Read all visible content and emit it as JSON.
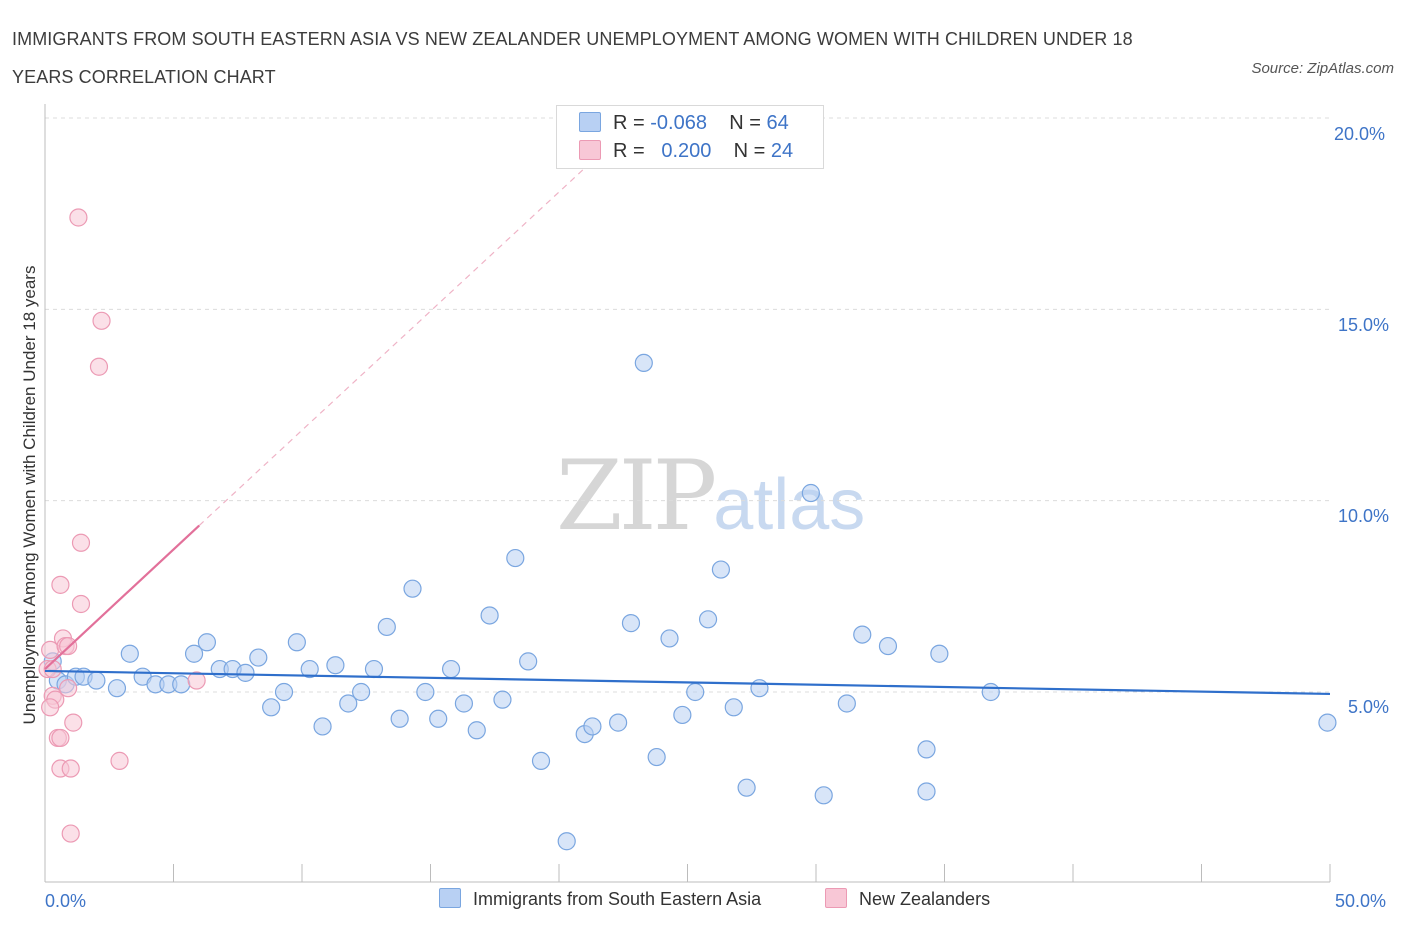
{
  "title": "IMMIGRANTS FROM SOUTH EASTERN ASIA VS NEW ZEALANDER UNEMPLOYMENT AMONG WOMEN WITH CHILDREN UNDER 18 YEARS CORRELATION CHART",
  "source": "Source: ZipAtlas.com",
  "watermark": {
    "zip": "ZIP",
    "atlas": "atlas"
  },
  "legend": {
    "r_label": "R =",
    "n_label": "N =",
    "rows": [
      {
        "r": "-0.068",
        "n": "64"
      },
      {
        "r": "0.200",
        "n": "24"
      }
    ]
  },
  "colors": {
    "blue_fill": "#b8d0f3",
    "blue_stroke": "#7aa6e0",
    "blue_line": "#2f6fcb",
    "pink_fill": "#f8c7d6",
    "pink_stroke": "#ec9ab4",
    "pink_line": "#e2709a",
    "axis_text": "#3e74c7",
    "grid": "#dcdcdc"
  },
  "chart_data": {
    "type": "scatter",
    "title": "IMMIGRANTS FROM SOUTH EASTERN ASIA VS NEW ZEALANDER UNEMPLOYMENT AMONG WOMEN WITH CHILDREN UNDER 18 YEARS CORRELATION CHART",
    "xlabel": "",
    "ylabel": "Unemployment Among Women with Children Under 18 years",
    "xlim": [
      0,
      50
    ],
    "ylim": [
      0,
      20.5
    ],
    "x_tick_labels": [
      "0.0%",
      "50.0%"
    ],
    "y_ticks": [
      5,
      10,
      15,
      20
    ],
    "y_tick_labels": [
      "5.0%",
      "10.0%",
      "15.0%",
      "20.0%"
    ],
    "grid": true,
    "legend_position": "top-center",
    "series": [
      {
        "name": "Immigrants from South Eastern Asia",
        "color": "blue",
        "r": -0.068,
        "n": 64,
        "trend": {
          "x": [
            0,
            50
          ],
          "y": [
            5.55,
            4.95
          ],
          "style": "solid"
        },
        "points": [
          [
            0.3,
            5.8
          ],
          [
            0.5,
            5.3
          ],
          [
            0.8,
            5.2
          ],
          [
            1.2,
            5.4
          ],
          [
            1.5,
            5.4
          ],
          [
            2.0,
            5.3
          ],
          [
            2.8,
            5.1
          ],
          [
            3.3,
            6.0
          ],
          [
            3.8,
            5.4
          ],
          [
            4.3,
            5.2
          ],
          [
            4.8,
            5.2
          ],
          [
            5.3,
            5.2
          ],
          [
            5.8,
            6.0
          ],
          [
            6.3,
            6.3
          ],
          [
            6.8,
            5.6
          ],
          [
            7.3,
            5.6
          ],
          [
            7.8,
            5.5
          ],
          [
            8.3,
            5.9
          ],
          [
            8.8,
            4.6
          ],
          [
            9.3,
            5.0
          ],
          [
            9.8,
            6.3
          ],
          [
            10.3,
            5.6
          ],
          [
            10.8,
            4.1
          ],
          [
            11.3,
            5.7
          ],
          [
            11.8,
            4.7
          ],
          [
            12.3,
            5.0
          ],
          [
            12.8,
            5.6
          ],
          [
            13.3,
            6.7
          ],
          [
            13.8,
            4.3
          ],
          [
            14.3,
            7.7
          ],
          [
            14.8,
            5.0
          ],
          [
            15.3,
            4.3
          ],
          [
            15.8,
            5.6
          ],
          [
            16.3,
            4.7
          ],
          [
            16.8,
            4.0
          ],
          [
            17.3,
            7.0
          ],
          [
            17.8,
            4.8
          ],
          [
            18.3,
            8.5
          ],
          [
            18.8,
            5.8
          ],
          [
            19.3,
            3.2
          ],
          [
            20.3,
            1.1
          ],
          [
            21.0,
            3.9
          ],
          [
            21.3,
            4.1
          ],
          [
            22.3,
            4.2
          ],
          [
            22.8,
            6.8
          ],
          [
            23.3,
            13.6
          ],
          [
            23.8,
            3.3
          ],
          [
            24.3,
            6.4
          ],
          [
            24.8,
            4.4
          ],
          [
            25.3,
            5.0
          ],
          [
            25.8,
            6.9
          ],
          [
            26.3,
            8.2
          ],
          [
            26.8,
            4.6
          ],
          [
            27.3,
            2.5
          ],
          [
            27.8,
            5.1
          ],
          [
            29.8,
            10.2
          ],
          [
            30.3,
            2.3
          ],
          [
            31.2,
            4.7
          ],
          [
            31.8,
            6.5
          ],
          [
            32.8,
            6.2
          ],
          [
            34.3,
            3.5
          ],
          [
            34.3,
            2.4
          ],
          [
            34.8,
            6.0
          ],
          [
            36.8,
            5.0
          ],
          [
            49.9,
            4.2
          ]
        ]
      },
      {
        "name": "New Zealanders",
        "color": "pink",
        "r": 0.2,
        "n": 24,
        "trend": {
          "x": [
            0,
            6.0
          ],
          "y": [
            5.6,
            9.35
          ],
          "style": "solid",
          "extension_to": [
            21.5,
            19.0
          ],
          "extension_style": "dashed"
        },
        "points": [
          [
            0.1,
            5.6
          ],
          [
            0.2,
            6.1
          ],
          [
            0.3,
            4.9
          ],
          [
            0.4,
            4.8
          ],
          [
            0.2,
            4.6
          ],
          [
            0.3,
            5.6
          ],
          [
            0.5,
            3.8
          ],
          [
            0.6,
            3.8
          ],
          [
            0.6,
            3.0
          ],
          [
            0.7,
            6.4
          ],
          [
            0.8,
            6.2
          ],
          [
            0.9,
            5.1
          ],
          [
            0.9,
            6.2
          ],
          [
            1.0,
            1.3
          ],
          [
            1.1,
            4.2
          ],
          [
            1.0,
            3.0
          ],
          [
            0.6,
            7.8
          ],
          [
            1.3,
            17.4
          ],
          [
            1.4,
            7.3
          ],
          [
            1.4,
            8.9
          ],
          [
            2.2,
            14.7
          ],
          [
            2.1,
            13.5
          ],
          [
            2.9,
            3.2
          ],
          [
            5.9,
            5.3
          ]
        ]
      }
    ]
  },
  "bottom_legend": [
    {
      "label": "Immigrants from South Eastern Asia"
    },
    {
      "label": "New Zealanders"
    }
  ]
}
